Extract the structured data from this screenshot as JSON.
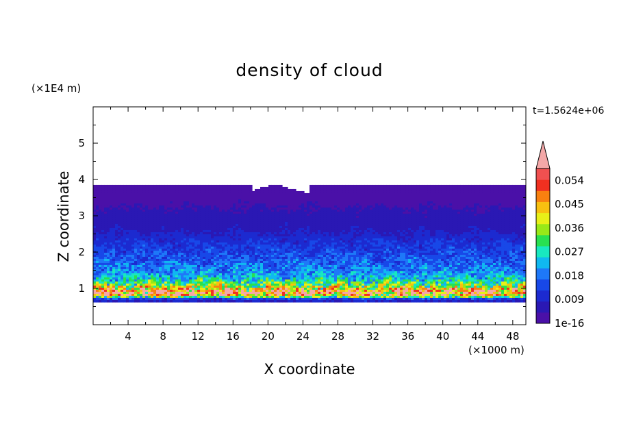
{
  "header": {
    "title": "density of cloud",
    "y_multiplier": "(×1E4 m)",
    "x_multiplier": "(×1000 m)",
    "time_label": "t=1.5624e+06"
  },
  "chart_data": {
    "type": "heatmap",
    "title": "density of cloud",
    "xlabel": "X coordinate",
    "ylabel": "Z coordinate",
    "x_unit": "(×1000 m)",
    "y_unit": "(×1E4 m)",
    "xlim": [
      0,
      49.5
    ],
    "ylim": [
      0,
      6
    ],
    "x_ticks": [
      "4",
      "8",
      "12",
      "16",
      "20",
      "24",
      "28",
      "32",
      "36",
      "40",
      "44",
      "48"
    ],
    "x_tick_values": [
      4,
      8,
      12,
      16,
      20,
      24,
      28,
      32,
      36,
      40,
      44,
      48
    ],
    "y_ticks": [
      "1",
      "2",
      "3",
      "4",
      "5"
    ],
    "y_tick_values": [
      1,
      2,
      3,
      4,
      5
    ],
    "cloud_base_z": 0.65,
    "cloud_top_z": 3.85,
    "vertical_profile": [
      {
        "z": 0.65,
        "value": 0.009
      },
      {
        "z": 0.72,
        "value": 0.015
      },
      {
        "z": 0.8,
        "value": 0.05
      },
      {
        "z": 0.9,
        "value": 0.058
      },
      {
        "z": 1.0,
        "value": 0.045
      },
      {
        "z": 1.1,
        "value": 0.036
      },
      {
        "z": 1.25,
        "value": 0.027
      },
      {
        "z": 1.45,
        "value": 0.022
      },
      {
        "z": 1.7,
        "value": 0.018
      },
      {
        "z": 2.0,
        "value": 0.015
      },
      {
        "z": 2.3,
        "value": 0.012
      },
      {
        "z": 2.6,
        "value": 0.008
      },
      {
        "z": 3.0,
        "value": 0.006
      },
      {
        "z": 3.3,
        "value": 0.004
      },
      {
        "z": 3.85,
        "value": 0.002
      }
    ],
    "colorbar": {
      "labels": [
        "0.054",
        "0.045",
        "0.036",
        "0.027",
        "0.018",
        "0.009",
        "1e-16"
      ],
      "label_values": [
        0.054,
        0.045,
        0.036,
        0.027,
        0.018,
        0.009,
        0
      ],
      "levels": [
        0,
        0.0045,
        0.009,
        0.0135,
        0.018,
        0.0225,
        0.027,
        0.0315,
        0.036,
        0.0405,
        0.045,
        0.0495,
        0.054,
        0.0585
      ],
      "colors": [
        "#4a10a8",
        "#2a18b4",
        "#1c2ad0",
        "#1848e8",
        "#1e78f8",
        "#10b8f0",
        "#18e8c0",
        "#28e050",
        "#98e818",
        "#e8f018",
        "#f8c010",
        "#f88010",
        "#f03020",
        "#f05050"
      ],
      "overflow_color": "#f4a8a8"
    },
    "grid": false,
    "legend": "right"
  }
}
